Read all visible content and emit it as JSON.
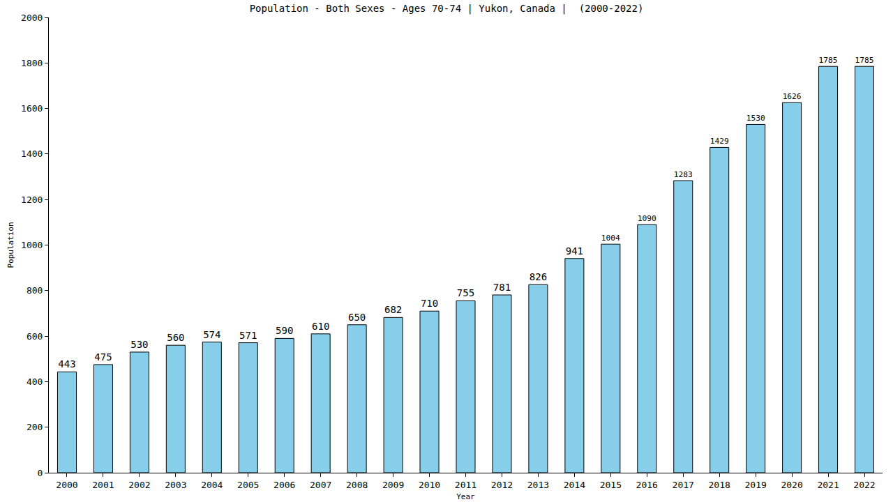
{
  "chart_data": {
    "type": "bar",
    "title": "Population - Both Sexes - Ages 70-74 | Yukon, Canada |  (2000-2022)",
    "x_label": "Year",
    "y_label": "Population",
    "categories": [
      "2000",
      "2001",
      "2002",
      "2003",
      "2004",
      "2005",
      "2006",
      "2007",
      "2008",
      "2009",
      "2010",
      "2011",
      "2012",
      "2013",
      "2014",
      "2015",
      "2016",
      "2017",
      "2018",
      "2019",
      "2020",
      "2021",
      "2022"
    ],
    "values": [
      443,
      475,
      530,
      560,
      574,
      571,
      590,
      610,
      650,
      682,
      710,
      755,
      781,
      826,
      941,
      1004,
      1090,
      1283,
      1429,
      1530,
      1626,
      1785,
      1785
    ],
    "color": "#87ceeb",
    "ylim": [
      0,
      2000
    ],
    "yticks": [
      0,
      200,
      400,
      600,
      800,
      1000,
      1200,
      1400,
      1600,
      1800,
      2000
    ],
    "grid": false,
    "data_labels": true
  }
}
